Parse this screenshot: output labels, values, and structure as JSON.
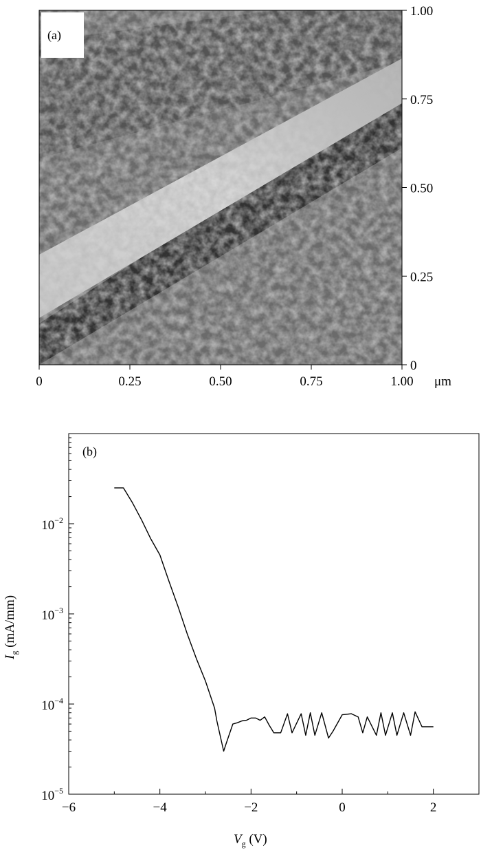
{
  "chart_data": [
    {
      "panel": "(a)",
      "type": "heatmap",
      "x_ticks": [
        "0",
        "0.25",
        "0.50",
        "0.75",
        "1.00"
      ],
      "y_ticks": [
        "0",
        "0.25",
        "0.50",
        "0.75",
        "1.00"
      ],
      "x_unit": "μm",
      "xlim": [
        0,
        1.0
      ],
      "ylim": [
        0,
        1.0
      ],
      "grid": false
    },
    {
      "panel": "(b)",
      "type": "line",
      "xlabel_var": "V",
      "xlabel_sub": "g",
      "xlabel_unit": " (V)",
      "ylabel_var": "I",
      "ylabel_sub": "g",
      "ylabel_unit": " (mA/mm)",
      "xlim": [
        -6,
        3
      ],
      "ylim": [
        1e-05,
        0.1
      ],
      "yscale": "log",
      "x_ticks": [
        -6,
        -4,
        -2,
        0,
        2
      ],
      "x_tick_labels": [
        "−6",
        "−4",
        "−2",
        "0",
        "2"
      ],
      "y_ticks": [
        {
          "value": 1e-05,
          "base": "10",
          "exp": "−5"
        },
        {
          "value": 0.0001,
          "base": "10",
          "exp": "−4"
        },
        {
          "value": 0.001,
          "base": "10",
          "exp": "−3"
        },
        {
          "value": 0.01,
          "base": "10",
          "exp": "−2"
        }
      ],
      "grid": false,
      "series": [
        {
          "x": [
            -5.0,
            -4.8,
            -4.6,
            -4.4,
            -4.2,
            -4.0,
            -3.8,
            -3.6,
            -3.4,
            -3.2,
            -3.0,
            -2.8,
            -2.75,
            -2.6,
            -2.55,
            -2.4,
            -2.3,
            -2.2,
            -2.1,
            -2.0,
            -1.9,
            -1.8,
            -1.7,
            -1.6,
            -1.5,
            -1.35,
            -1.2,
            -1.1,
            -0.9,
            -0.8,
            -0.7,
            -0.6,
            -0.45,
            -0.3,
            -0.2,
            0.0,
            0.2,
            0.35,
            0.45,
            0.55,
            0.75,
            0.85,
            0.95,
            1.1,
            1.2,
            1.35,
            1.5,
            1.6,
            1.75,
            1.82,
            2.0
          ],
          "y": [
            0.025,
            0.025,
            0.017,
            0.011,
            0.0068,
            0.0045,
            0.0023,
            0.0012,
            0.0006,
            0.00032,
            0.00018,
            9e-05,
            6.5e-05,
            3e-05,
            3.6e-05,
            6e-05,
            6.2e-05,
            6.5e-05,
            6.6e-05,
            7e-05,
            7e-05,
            6.6e-05,
            7.2e-05,
            5.8e-05,
            4.8e-05,
            4.8e-05,
            7.8e-05,
            4.8e-05,
            7.8e-05,
            4.5e-05,
            8e-05,
            4.5e-05,
            8e-05,
            4.2e-05,
            5e-05,
            7.6e-05,
            7.8e-05,
            7.2e-05,
            4.8e-05,
            7.2e-05,
            4.5e-05,
            8e-05,
            4.5e-05,
            8e-05,
            4.5e-05,
            8e-05,
            4.5e-05,
            8.2e-05,
            5.6e-05,
            5.6e-05,
            5.6e-05
          ]
        }
      ]
    }
  ]
}
